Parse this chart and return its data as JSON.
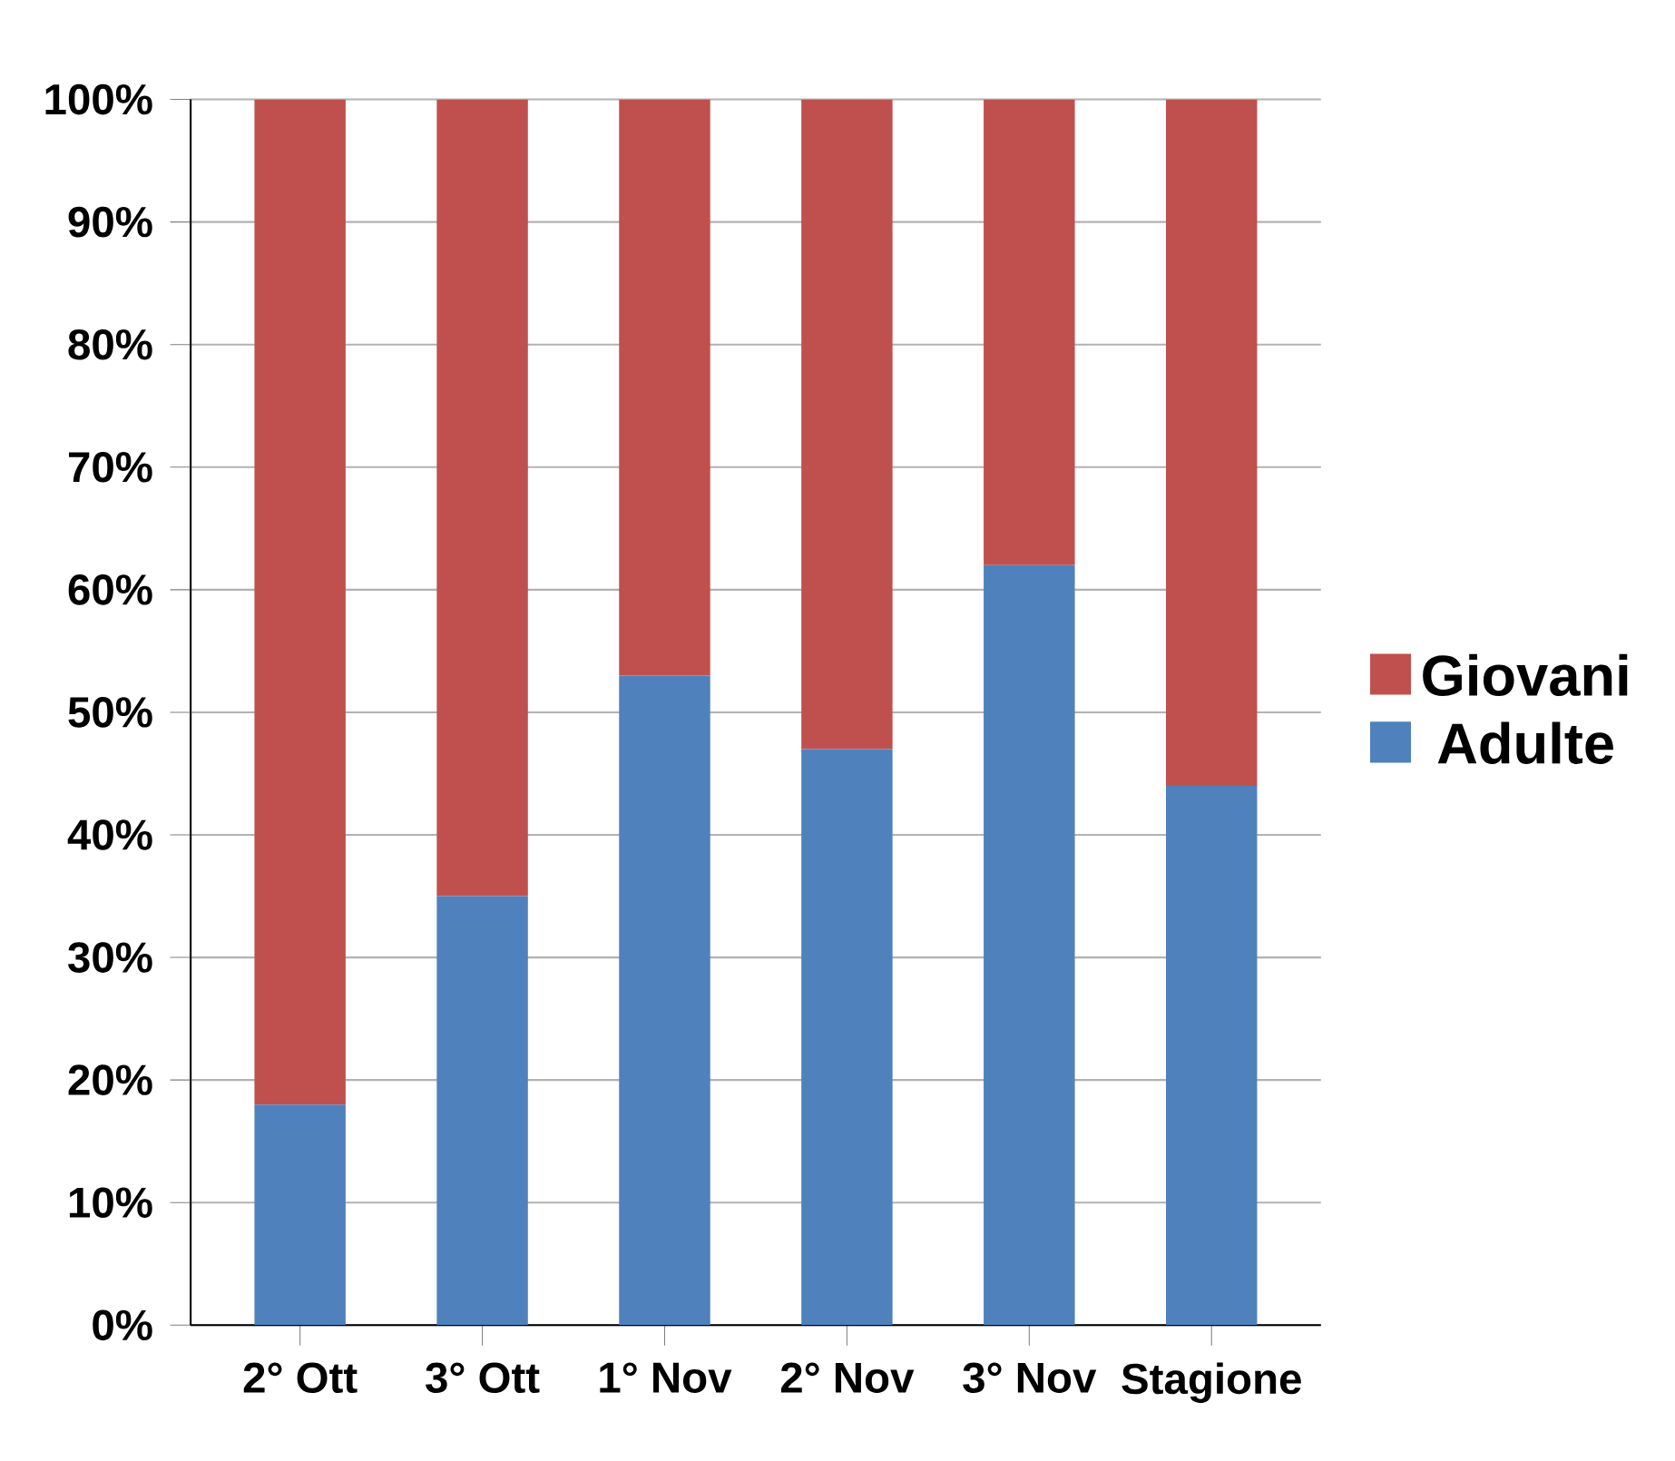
{
  "chart_data": {
    "type": "bar",
    "stacked": true,
    "categories": [
      "2° Ott",
      "3° Ott",
      "1° Nov",
      "2° Nov",
      "3° Nov",
      "Stagione"
    ],
    "series": [
      {
        "name": "Adulte",
        "color": "#4f81bd",
        "values": [
          18,
          35,
          53,
          47,
          62,
          44
        ]
      },
      {
        "name": "Giovani",
        "color": "#c0504d",
        "values": [
          82,
          65,
          47,
          53,
          38,
          56
        ]
      }
    ],
    "ylim": [
      0,
      100
    ],
    "yticks": [
      {
        "value": 0,
        "label": "0%"
      },
      {
        "value": 10,
        "label": "10%"
      },
      {
        "value": 20,
        "label": "20%"
      },
      {
        "value": 30,
        "label": "30%"
      },
      {
        "value": 40,
        "label": "40%"
      },
      {
        "value": 50,
        "label": "50%"
      },
      {
        "value": 60,
        "label": "60%"
      },
      {
        "value": 70,
        "label": "70%"
      },
      {
        "value": 80,
        "label": "80%"
      },
      {
        "value": 90,
        "label": "90%"
      },
      {
        "value": 100,
        "label": "100%"
      }
    ],
    "grid": "y",
    "legend": "right"
  }
}
